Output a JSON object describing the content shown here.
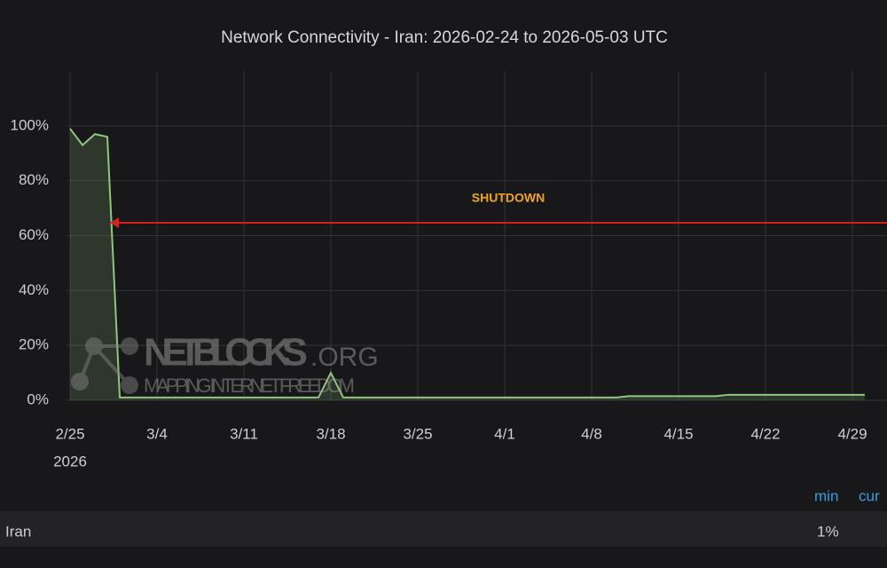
{
  "chart_data": {
    "type": "line",
    "title": "Network Connectivity - Iran: 2026-02-24 to 2026-05-03 UTC",
    "x": [
      "2026-02-25",
      "2026-02-26",
      "2026-02-27",
      "2026-02-28",
      "2026-03-01",
      "2026-03-02",
      "2026-03-03",
      "2026-03-04",
      "2026-03-05",
      "2026-03-06",
      "2026-03-07",
      "2026-03-08",
      "2026-03-09",
      "2026-03-10",
      "2026-03-11",
      "2026-03-12",
      "2026-03-13",
      "2026-03-14",
      "2026-03-15",
      "2026-03-16",
      "2026-03-17",
      "2026-03-18",
      "2026-03-19",
      "2026-03-20",
      "2026-03-21",
      "2026-03-22",
      "2026-03-23",
      "2026-03-24",
      "2026-03-25",
      "2026-03-26",
      "2026-03-27",
      "2026-03-28",
      "2026-03-29",
      "2026-03-30",
      "2026-03-31",
      "2026-04-01",
      "2026-04-02",
      "2026-04-03",
      "2026-04-04",
      "2026-04-05",
      "2026-04-06",
      "2026-04-07",
      "2026-04-08",
      "2026-04-09",
      "2026-04-10",
      "2026-04-11",
      "2026-04-12",
      "2026-04-13",
      "2026-04-14",
      "2026-04-15",
      "2026-04-16",
      "2026-04-17",
      "2026-04-18",
      "2026-04-19",
      "2026-04-20",
      "2026-04-21",
      "2026-04-22",
      "2026-04-23",
      "2026-04-24",
      "2026-04-25",
      "2026-04-26",
      "2026-04-27",
      "2026-04-28",
      "2026-04-29",
      "2026-04-30"
    ],
    "series": [
      {
        "name": "Iran",
        "color": "#8fc77e",
        "min_label": "1%",
        "values": [
          99,
          93,
          97,
          96,
          1,
          1,
          1,
          1,
          1,
          1,
          1,
          1,
          1,
          1,
          1,
          1,
          1,
          1,
          1,
          1,
          1,
          10,
          1,
          1,
          1,
          1,
          1,
          1,
          1,
          1,
          1,
          1,
          1,
          1,
          1,
          1,
          1,
          1,
          1,
          1,
          1,
          1,
          1,
          1,
          1,
          1.5,
          1.5,
          1.5,
          1.5,
          1.5,
          1.5,
          1.5,
          1.5,
          2,
          2,
          2,
          2,
          2,
          2,
          2,
          2,
          2,
          2,
          2,
          2
        ]
      }
    ],
    "xlim": [
      "2026-02-25",
      "2026-05-01"
    ],
    "xticks": [
      {
        "value": "2026-02-25",
        "label": "2/25"
      },
      {
        "value": "2026-03-04",
        "label": "3/4"
      },
      {
        "value": "2026-03-11",
        "label": "3/11"
      },
      {
        "value": "2026-03-18",
        "label": "3/18"
      },
      {
        "value": "2026-03-25",
        "label": "3/25"
      },
      {
        "value": "2026-04-01",
        "label": "4/1"
      },
      {
        "value": "2026-04-08",
        "label": "4/8"
      },
      {
        "value": "2026-04-15",
        "label": "4/15"
      },
      {
        "value": "2026-04-22",
        "label": "4/22"
      },
      {
        "value": "2026-04-29",
        "label": "4/29"
      }
    ],
    "xtick_year": "2026",
    "ylim": [
      0,
      120
    ],
    "yticks": [
      {
        "value": 0,
        "label": "0%"
      },
      {
        "value": 20,
        "label": "20%"
      },
      {
        "value": 40,
        "label": "40%"
      },
      {
        "value": 60,
        "label": "60%"
      },
      {
        "value": 80,
        "label": "80%"
      },
      {
        "value": 100,
        "label": "100%"
      }
    ],
    "grid": true,
    "annotation": {
      "text": "SHUTDOWN",
      "x": "2026-02-28"
    },
    "legend_columns": [
      "min",
      "cur"
    ],
    "watermark": {
      "name": "NETBLOCKS",
      "suffix": ".ORG",
      "tagline": "MAPPING INTERNET FREEDOM"
    }
  }
}
